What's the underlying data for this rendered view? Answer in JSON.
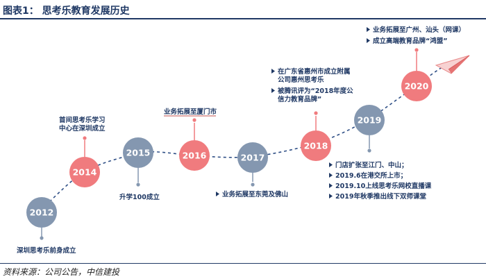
{
  "header": {
    "title": "图表1：  思考乐教育发展历史"
  },
  "footer": {
    "source": "资料来源：公司公告，中信建投"
  },
  "colors": {
    "blue_node": "#8497b0",
    "red_node": "#f07b7e",
    "text_navy": "#1f3864",
    "dash": "#2f4f86"
  },
  "timeline": [
    {
      "year": "2012",
      "notes": [
        "深圳思考乐前身成立"
      ]
    },
    {
      "year": "2014",
      "notes": [
        "首间思考乐学习",
        "中心在深圳成立"
      ]
    },
    {
      "year": "2015",
      "notes": [
        "升学100成立"
      ]
    },
    {
      "year": "2016",
      "notes": [
        "业务拓展至厦门市"
      ]
    },
    {
      "year": "2017",
      "notes": [
        "业务拓展至东莞及佛山"
      ]
    },
    {
      "year": "2018",
      "notes": [
        "在广东省惠州市成立附属",
        "公司惠州思考乐",
        "被腾讯评为“2018年度公",
        "信力教育品牌”"
      ]
    },
    {
      "year": "2019",
      "notes": [
        "门店扩张至江门、中山；",
        "2019.6在港交所上市；",
        "2019.10上线思考乐网校直播课",
        "2019年秋季推出线下双师课堂"
      ]
    },
    {
      "year": "2020",
      "notes": [
        "业务拓展至广州、汕头（网课）",
        "成立高端教育品牌“鸿盟”"
      ]
    }
  ]
}
